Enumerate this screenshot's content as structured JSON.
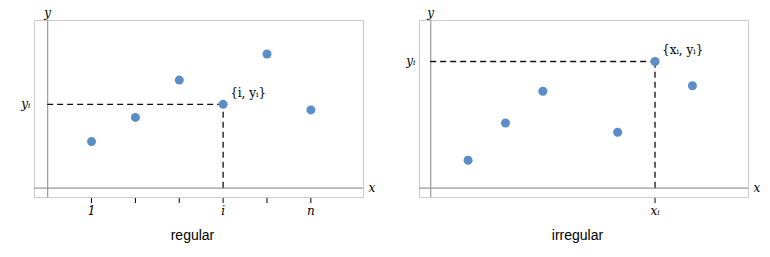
{
  "chart_data": [
    {
      "type": "scatter",
      "title": "regular",
      "x": [
        1,
        2,
        3,
        4,
        5,
        6
      ],
      "values": [
        2.5,
        3.8,
        5.8,
        4.5,
        7.2,
        4.2
      ],
      "color": "#5b8ec8",
      "x_label": "x",
      "y_label": "y",
      "xlim": [
        -0.3,
        7.2
      ],
      "ylim": [
        -0.5,
        9.0
      ],
      "xticks": [
        1,
        {
          "value": 2,
          "label": null
        },
        {
          "value": 3,
          "label": null
        },
        {
          "value": 4,
          "label": "i"
        },
        {
          "value": 5,
          "label": null
        },
        {
          "value": 6,
          "label": "n"
        }
      ],
      "tick_labels": "x",
      "highlight": {
        "x": 4,
        "y": 4.5,
        "label": "{i, yᵢ}",
        "y_label": "yᵢ"
      }
    },
    {
      "type": "scatter",
      "title": "irregular",
      "x": [
        1,
        2,
        3,
        5,
        6,
        7
      ],
      "values": [
        1.5,
        3.5,
        5.2,
        3.0,
        6.8,
        5.5
      ],
      "color": "#5b8ec8",
      "x_label": "x",
      "y_label": "y",
      "xlim": [
        -0.3,
        8.5
      ],
      "ylim": [
        -0.5,
        9.0
      ],
      "xticks": [
        {
          "value": 6,
          "label": "xᵢ"
        }
      ],
      "tick_labels": "x",
      "highlight": {
        "x": 6,
        "y": 6.8,
        "label": "{xᵢ, yᵢ}",
        "y_label": "yᵢ"
      }
    }
  ]
}
